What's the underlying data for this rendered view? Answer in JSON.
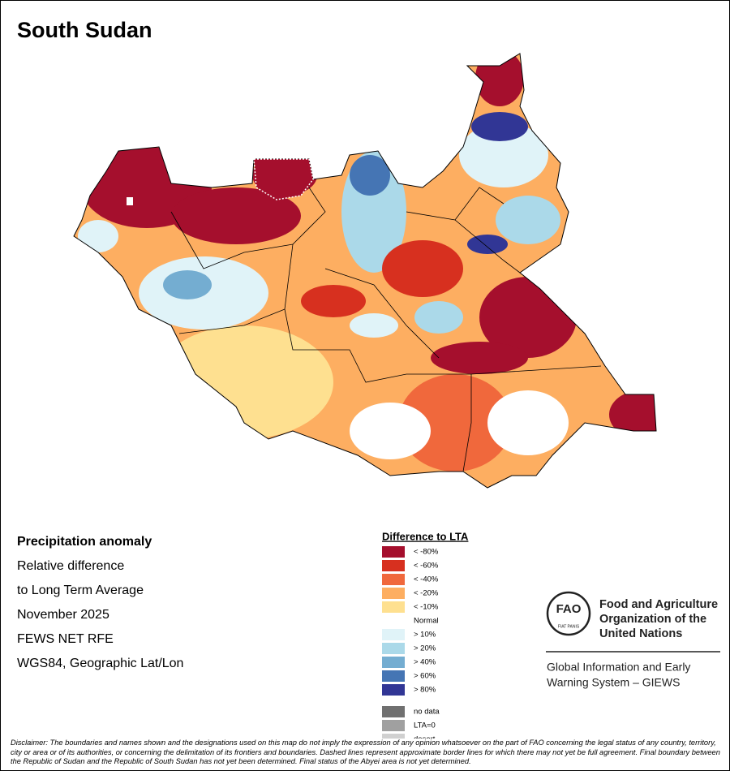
{
  "header": {
    "title": "South Sudan"
  },
  "info": {
    "lines": [
      "Precipitation anomaly",
      "Relative difference",
      "to Long Term Average",
      "November 2025",
      "FEWS NET RFE",
      "WGS84, Geographic Lat/Lon"
    ]
  },
  "legend": {
    "title": "Difference to LTA",
    "items": [
      {
        "label": "< -80%",
        "color": "#a50f2d"
      },
      {
        "label": "< -60%",
        "color": "#d7301f"
      },
      {
        "label": "< -40%",
        "color": "#f0683c"
      },
      {
        "label": "< -20%",
        "color": "#fdae61"
      },
      {
        "label": "< -10%",
        "color": "#fee090"
      },
      {
        "label": "Normal",
        "color": "#ffffff"
      },
      {
        "label": "> 10%",
        "color": "#e0f3f8"
      },
      {
        "label": "> 20%",
        "color": "#abd9e9"
      },
      {
        "label": "> 40%",
        "color": "#74add1"
      },
      {
        "label": "> 60%",
        "color": "#4575b4"
      },
      {
        "label": "> 80%",
        "color": "#313695"
      }
    ],
    "extra": [
      {
        "label": "no data",
        "color": "#707070"
      },
      {
        "label": "LTA=0",
        "color": "#a0a0a0"
      },
      {
        "label": "desert",
        "color": "#d0d0d0"
      }
    ]
  },
  "logo": {
    "acronym": "FAO",
    "motto": "FIAT PANIS",
    "org": [
      "Food and Agriculture",
      "Organization of the",
      "United Nations"
    ],
    "system": [
      "Global Information and Early",
      "Warning System – GIEWS"
    ]
  },
  "footer": {
    "disclaimer": "Disclaimer: The boundaries and names shown and the designations used on this map do not imply the expression of any opinion whatsoever on the part of FAO concerning the legal status of any country, territory, city or area or of its authorities, or concerning the delimitation of its frontiers and boundaries. Dashed lines represent approximate border lines for which there may not yet be full agreement.  Final boundary between the Republic of Sudan and the Republic of South Sudan has not yet been determined. Final status of the Abyei area is not yet determined."
  }
}
